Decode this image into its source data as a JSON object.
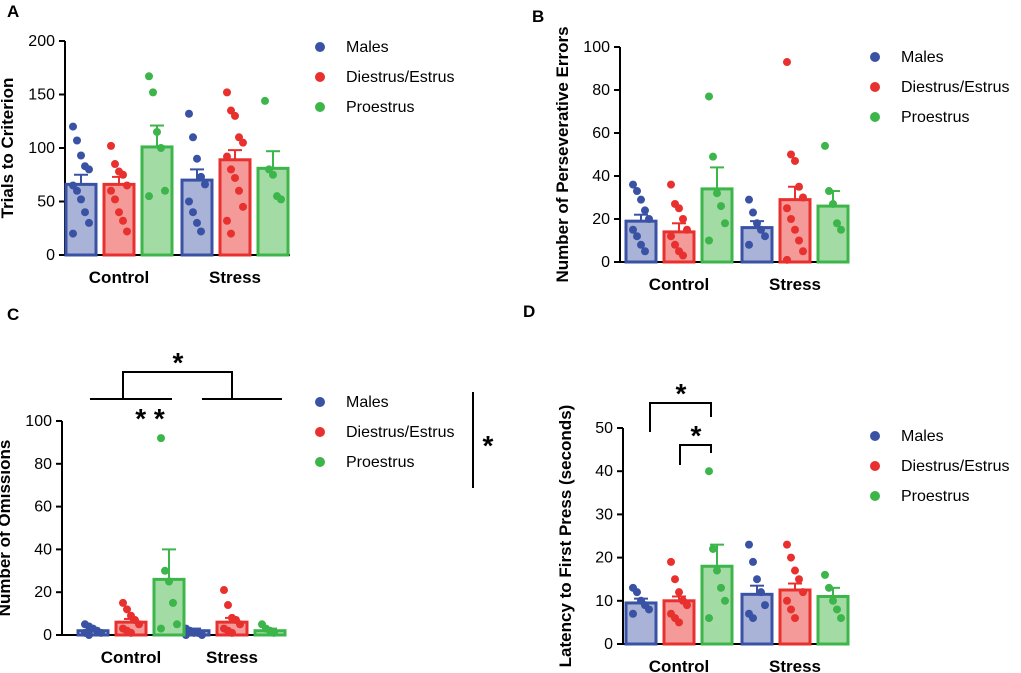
{
  "figure": {
    "title": ""
  },
  "legend_colors": {
    "Males": "#3a52a4",
    "Diestrus/Estrus": "#e8302e",
    "Proestrus": "#3cb54a"
  },
  "bar_fills": {
    "Males": "#a9b3d8",
    "Diestrus/Estrus": "#f49a99",
    "Proestrus": "#a3dba5"
  },
  "chart_data": [
    {
      "panel": "A",
      "type": "bar",
      "ylabel": "Trials to Criterion",
      "xlabel": "",
      "ylim": [
        0,
        200
      ],
      "yticks": [
        0,
        50,
        100,
        150,
        200
      ],
      "categories": [
        "Control",
        "Stress"
      ],
      "legend": [
        "Males",
        "Diestrus/Estrus",
        "Proestrus"
      ],
      "series": [
        {
          "name": "Males",
          "values": [
            66,
            70
          ],
          "sem": [
            9,
            10
          ],
          "points": [
            [
              120,
              107,
              93,
              83,
              80,
              65,
              60,
              52,
              40,
              30,
              20
            ],
            [
              132,
              110,
              90,
              73,
              66,
              50,
              40,
              30,
              22
            ]
          ]
        },
        {
          "name": "Diestrus/Estrus",
          "values": [
            66,
            89
          ],
          "sem": [
            7,
            9
          ],
          "points": [
            [
              102,
              85,
              78,
              75,
              65,
              60,
              52,
              40,
              32,
              22
            ],
            [
              152,
              135,
              130,
              110,
              105,
              92,
              80,
              72,
              60,
              45,
              32,
              20
            ]
          ]
        },
        {
          "name": "Proestrus",
          "values": [
            101,
            81
          ],
          "sem": [
            20,
            16
          ],
          "points": [
            [
              167,
              152,
              115,
              100,
              60,
              55
            ],
            [
              144,
              80,
              75,
              55,
              52
            ]
          ]
        }
      ]
    },
    {
      "panel": "B",
      "type": "bar",
      "ylabel": "Number of Perseverative Errors",
      "xlabel": "",
      "ylim": [
        0,
        100
      ],
      "yticks": [
        0,
        20,
        40,
        60,
        80,
        100
      ],
      "categories": [
        "Control",
        "Stress"
      ],
      "legend": [
        "Males",
        "Diestrus/Estrus",
        "Proestrus"
      ],
      "series": [
        {
          "name": "Males",
          "values": [
            19,
            16
          ],
          "sem": [
            3,
            3
          ],
          "points": [
            [
              36,
              33,
              29,
              24,
              20,
              15,
              12,
              8,
              5
            ],
            [
              29,
              23,
              18,
              15,
              12,
              8
            ]
          ]
        },
        {
          "name": "Diestrus/Estrus",
          "values": [
            14,
            29
          ],
          "sem": [
            4,
            6
          ],
          "points": [
            [
              36,
              27,
              25,
              20,
              15,
              12,
              8,
              5,
              3
            ],
            [
              93,
              50,
              47,
              35,
              30,
              25,
              20,
              15,
              10,
              5,
              1
            ]
          ]
        },
        {
          "name": "Proestrus",
          "values": [
            34,
            26
          ],
          "sem": [
            10,
            7
          ],
          "points": [
            [
              77,
              49,
              32,
              26,
              18,
              10
            ],
            [
              54,
              33,
              27,
              18,
              15
            ]
          ]
        }
      ]
    },
    {
      "panel": "C",
      "type": "bar",
      "ylabel": "Number of Omissions",
      "xlabel": "",
      "ylim": [
        0,
        100
      ],
      "yticks": [
        0,
        20,
        40,
        60,
        80,
        100
      ],
      "categories": [
        "Control",
        "Stress"
      ],
      "legend": [
        "Males",
        "Diestrus/Estrus",
        "Proestrus"
      ],
      "series": [
        {
          "name": "Males",
          "values": [
            2,
            2
          ],
          "sem": [
            1,
            1
          ],
          "points": [
            [
              5,
              4,
              3,
              2,
              1,
              1,
              0
            ],
            [
              3,
              2,
              1,
              1,
              0,
              0
            ]
          ]
        },
        {
          "name": "Diestrus/Estrus",
          "values": [
            6,
            6
          ],
          "sem": [
            1.5,
            2
          ],
          "points": [
            [
              15,
              12,
              9,
              7,
              5,
              3,
              2,
              1
            ],
            [
              21,
              14,
              8,
              7,
              5,
              3,
              2,
              1
            ]
          ]
        },
        {
          "name": "Proestrus",
          "values": [
            26,
            2
          ],
          "sem": [
            14,
            1
          ],
          "points": [
            [
              92,
              30,
              25,
              15,
              5,
              3
            ],
            [
              5,
              3,
              2,
              1
            ]
          ]
        }
      ],
      "annotations": [
        {
          "label": "*",
          "between": "Control vs Stress"
        },
        {
          "label": "* *",
          "between": "Control groups"
        },
        {
          "label": "*",
          "between": "Legend groups"
        }
      ]
    },
    {
      "panel": "D",
      "type": "bar",
      "ylabel": "Latency to First Press (seconds)",
      "xlabel": "",
      "ylim": [
        0,
        50
      ],
      "yticks": [
        0,
        10,
        20,
        30,
        40,
        50
      ],
      "categories": [
        "Control",
        "Stress"
      ],
      "legend": [
        "Males",
        "Diestrus/Estrus",
        "Proestrus"
      ],
      "series": [
        {
          "name": "Males",
          "values": [
            9.5,
            11.5
          ],
          "sem": [
            1,
            2
          ],
          "points": [
            [
              13,
              12,
              10,
              9,
              8,
              7
            ],
            [
              23,
              19,
              15,
              12,
              9,
              7,
              6
            ]
          ]
        },
        {
          "name": "Diestrus/Estrus",
          "values": [
            10,
            12.5
          ],
          "sem": [
            1,
            1.5
          ],
          "points": [
            [
              19,
              15,
              12,
              10,
              9,
              7,
              6,
              5
            ],
            [
              23,
              20,
              17,
              15,
              12,
              10,
              8,
              6
            ]
          ]
        },
        {
          "name": "Proestrus",
          "values": [
            18,
            11
          ],
          "sem": [
            5,
            2
          ],
          "points": [
            [
              40,
              22,
              17,
              13,
              10,
              6
            ],
            [
              16,
              13,
              10,
              8,
              6
            ]
          ]
        }
      ],
      "annotations": [
        {
          "label": "*",
          "between": "Control Males vs Control Proestrus"
        },
        {
          "label": "*",
          "between": "Control Diestrus/Estrus vs Control Proestrus"
        }
      ]
    }
  ]
}
